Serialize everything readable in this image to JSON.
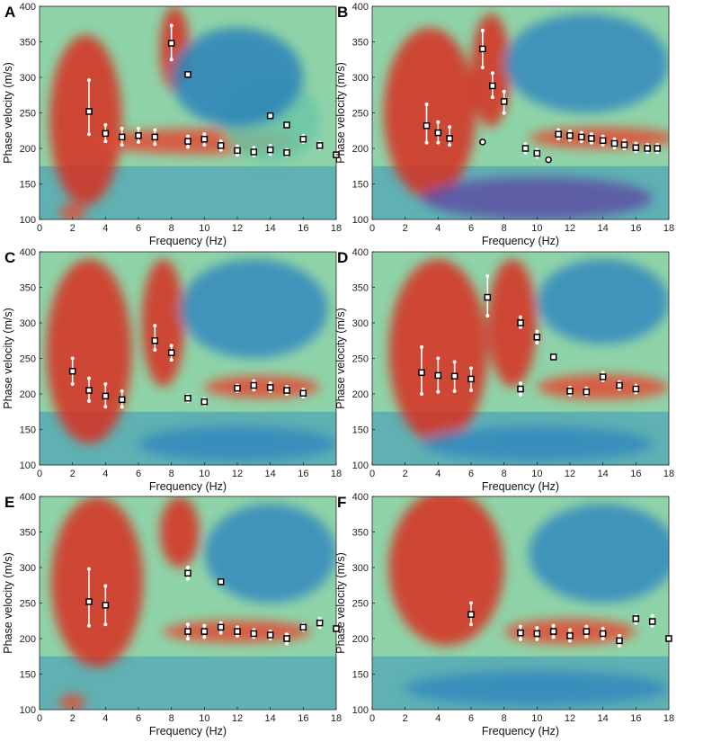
{
  "figure": {
    "xlabel": "Frequency (Hz)",
    "ylabel": "Phase velocity (m/s)",
    "xticks": [
      "0",
      "2",
      "4",
      "6",
      "8",
      "10",
      "12",
      "14",
      "16",
      "18"
    ],
    "yticks": [
      "100",
      "150",
      "200",
      "250",
      "300",
      "350",
      "400"
    ],
    "colors": {
      "marker_fill": "#ffffff",
      "marker_edge": "#000000",
      "errorbar": "#ffffff"
    },
    "colormap": "spectral (red = high energy, blue/purple = low)"
  },
  "chart_data": [
    {
      "panel": "A",
      "type": "scatter",
      "xlabel": "Frequency (Hz)",
      "ylabel": "Phase velocity (m/s)",
      "xlim": [
        0,
        18
      ],
      "ylim": [
        100,
        400
      ],
      "points": [
        {
          "x": 3,
          "y": 252,
          "err": [
            220,
            296
          ],
          "marker": "square"
        },
        {
          "x": 4,
          "y": 221,
          "err": [
            210,
            233
          ],
          "marker": "square"
        },
        {
          "x": 5,
          "y": 216,
          "err": [
            205,
            228
          ],
          "marker": "square"
        },
        {
          "x": 6,
          "y": 218,
          "err": [
            209,
            228
          ],
          "marker": "square"
        },
        {
          "x": 7,
          "y": 216,
          "err": [
            206,
            226
          ],
          "marker": "square"
        },
        {
          "x": 8,
          "y": 348,
          "err": [
            325,
            373
          ],
          "marker": "square"
        },
        {
          "x": 9,
          "y": 304,
          "marker": "square"
        },
        {
          "x": 9,
          "y": 210,
          "err": [
            202,
            217
          ],
          "marker": "square"
        },
        {
          "x": 10,
          "y": 213,
          "err": [
            205,
            220
          ],
          "marker": "square"
        },
        {
          "x": 11,
          "y": 204,
          "err": [
            198,
            210
          ],
          "marker": "square"
        },
        {
          "x": 12,
          "y": 197,
          "err": [
            191,
            203
          ],
          "marker": "square"
        },
        {
          "x": 13,
          "y": 195,
          "err": [
            190,
            201
          ],
          "marker": "square"
        },
        {
          "x": 14,
          "y": 246,
          "marker": "square"
        },
        {
          "x": 14,
          "y": 198,
          "err": [
            192,
            204
          ],
          "marker": "square"
        },
        {
          "x": 15,
          "y": 233,
          "marker": "square"
        },
        {
          "x": 15,
          "y": 194,
          "err": [
            190,
            198
          ],
          "marker": "square"
        },
        {
          "x": 16,
          "y": 213,
          "err": [
            209,
            218
          ],
          "marker": "square"
        },
        {
          "x": 17,
          "y": 204,
          "err": [
            200,
            208
          ],
          "marker": "square"
        },
        {
          "x": 18,
          "y": 191,
          "marker": "square"
        }
      ]
    },
    {
      "panel": "B",
      "type": "scatter",
      "xlabel": "Frequency (Hz)",
      "ylabel": "Phase velocity (m/s)",
      "xlim": [
        0,
        18
      ],
      "ylim": [
        100,
        400
      ],
      "points": [
        {
          "x": 3.3,
          "y": 232,
          "err": [
            208,
            262
          ],
          "marker": "square"
        },
        {
          "x": 4.0,
          "y": 222,
          "err": [
            208,
            237
          ],
          "marker": "square"
        },
        {
          "x": 4.7,
          "y": 214,
          "err": [
            205,
            230
          ],
          "marker": "square"
        },
        {
          "x": 6.7,
          "y": 340,
          "err": [
            314,
            366
          ],
          "marker": "square"
        },
        {
          "x": 6.7,
          "y": 209,
          "marker": "circle"
        },
        {
          "x": 7.3,
          "y": 288,
          "err": [
            272,
            306
          ],
          "marker": "square"
        },
        {
          "x": 8.0,
          "y": 266,
          "err": [
            250,
            280
          ],
          "marker": "square"
        },
        {
          "x": 9.3,
          "y": 200,
          "err": [
            194,
            206
          ],
          "marker": "square"
        },
        {
          "x": 10.0,
          "y": 193,
          "err": [
            188,
            198
          ],
          "marker": "square"
        },
        {
          "x": 10.7,
          "y": 184,
          "marker": "circle"
        },
        {
          "x": 11.3,
          "y": 220,
          "err": [
            214,
            226
          ],
          "marker": "square"
        },
        {
          "x": 12.0,
          "y": 218,
          "err": [
            212,
            224
          ],
          "marker": "square"
        },
        {
          "x": 12.7,
          "y": 216,
          "err": [
            210,
            222
          ],
          "marker": "square"
        },
        {
          "x": 13.3,
          "y": 214,
          "err": [
            208,
            220
          ],
          "marker": "square"
        },
        {
          "x": 14.0,
          "y": 211,
          "err": [
            205,
            217
          ],
          "marker": "square"
        },
        {
          "x": 14.7,
          "y": 207,
          "err": [
            201,
            213
          ],
          "marker": "square"
        },
        {
          "x": 15.3,
          "y": 205,
          "err": [
            200,
            211
          ],
          "marker": "square"
        },
        {
          "x": 16.0,
          "y": 201,
          "err": [
            196,
            207
          ],
          "marker": "square"
        },
        {
          "x": 16.7,
          "y": 200,
          "err": [
            195,
            205
          ],
          "marker": "square"
        },
        {
          "x": 17.3,
          "y": 200,
          "err": [
            195,
            205
          ],
          "marker": "square"
        }
      ]
    },
    {
      "panel": "C",
      "type": "scatter",
      "xlabel": "Frequency (Hz)",
      "ylabel": "Phase velocity (m/s)",
      "xlim": [
        0,
        18
      ],
      "ylim": [
        100,
        400
      ],
      "points": [
        {
          "x": 2,
          "y": 232,
          "err": [
            214,
            250
          ],
          "marker": "square"
        },
        {
          "x": 3,
          "y": 205,
          "err": [
            190,
            222
          ],
          "marker": "square"
        },
        {
          "x": 4,
          "y": 197,
          "err": [
            182,
            214
          ],
          "marker": "square"
        },
        {
          "x": 5,
          "y": 192,
          "err": [
            182,
            204
          ],
          "marker": "square"
        },
        {
          "x": 7,
          "y": 275,
          "err": [
            262,
            296
          ],
          "marker": "square"
        },
        {
          "x": 8,
          "y": 258,
          "err": [
            248,
            268
          ],
          "marker": "square"
        },
        {
          "x": 9,
          "y": 194,
          "err": [
            190,
            198
          ],
          "marker": "square"
        },
        {
          "x": 10,
          "y": 189,
          "err": [
            185,
            193
          ],
          "marker": "square"
        },
        {
          "x": 12,
          "y": 208,
          "err": [
            204,
            212
          ],
          "marker": "square"
        },
        {
          "x": 13,
          "y": 212,
          "err": [
            206,
            218
          ],
          "marker": "square"
        },
        {
          "x": 14,
          "y": 209,
          "err": [
            204,
            215
          ],
          "marker": "square"
        },
        {
          "x": 15,
          "y": 205,
          "err": [
            200,
            210
          ],
          "marker": "square"
        },
        {
          "x": 16,
          "y": 201,
          "err": [
            196,
            206
          ],
          "marker": "square"
        }
      ]
    },
    {
      "panel": "D",
      "type": "scatter",
      "xlabel": "Frequency (Hz)",
      "ylabel": "Phase velocity (m/s)",
      "xlim": [
        0,
        18
      ],
      "ylim": [
        100,
        400
      ],
      "points": [
        {
          "x": 3,
          "y": 230,
          "err": [
            200,
            266
          ],
          "marker": "square"
        },
        {
          "x": 4,
          "y": 226,
          "err": [
            203,
            250
          ],
          "marker": "square"
        },
        {
          "x": 5,
          "y": 225,
          "err": [
            204,
            245
          ],
          "marker": "square"
        },
        {
          "x": 6,
          "y": 221,
          "err": [
            205,
            236
          ],
          "marker": "square"
        },
        {
          "x": 7,
          "y": 336,
          "err": [
            310,
            366
          ],
          "marker": "square"
        },
        {
          "x": 9,
          "y": 300,
          "err": [
            294,
            308
          ],
          "marker": "square"
        },
        {
          "x": 9,
          "y": 207,
          "err": [
            199,
            215
          ],
          "marker": "square"
        },
        {
          "x": 10,
          "y": 280,
          "err": [
            272,
            288
          ],
          "marker": "square"
        },
        {
          "x": 11,
          "y": 252,
          "marker": "square"
        },
        {
          "x": 12,
          "y": 204,
          "err": [
            199,
            209
          ],
          "marker": "square"
        },
        {
          "x": 13,
          "y": 203,
          "err": [
            199,
            208
          ],
          "marker": "square"
        },
        {
          "x": 14,
          "y": 224,
          "err": [
            219,
            230
          ],
          "marker": "square"
        },
        {
          "x": 15,
          "y": 212,
          "err": [
            207,
            217
          ],
          "marker": "square"
        },
        {
          "x": 16,
          "y": 207,
          "err": [
            202,
            212
          ],
          "marker": "square"
        }
      ]
    },
    {
      "panel": "E",
      "type": "scatter",
      "xlabel": "Frequency (Hz)",
      "ylabel": "Phase velocity (m/s)",
      "xlim": [
        0,
        18
      ],
      "ylim": [
        100,
        400
      ],
      "points": [
        {
          "x": 3,
          "y": 252,
          "err": [
            218,
            298
          ],
          "marker": "square"
        },
        {
          "x": 4,
          "y": 247,
          "err": [
            220,
            274
          ],
          "marker": "square"
        },
        {
          "x": 9,
          "y": 292,
          "err": [
            284,
            300
          ],
          "marker": "square"
        },
        {
          "x": 9,
          "y": 210,
          "err": [
            200,
            220
          ],
          "marker": "square"
        },
        {
          "x": 10,
          "y": 210,
          "err": [
            202,
            218
          ],
          "marker": "square"
        },
        {
          "x": 11,
          "y": 280,
          "marker": "square"
        },
        {
          "x": 11,
          "y": 216,
          "err": [
            208,
            222
          ],
          "marker": "square"
        },
        {
          "x": 12,
          "y": 210,
          "err": [
            204,
            216
          ],
          "marker": "square"
        },
        {
          "x": 13,
          "y": 207,
          "err": [
            202,
            212
          ],
          "marker": "square"
        },
        {
          "x": 14,
          "y": 205,
          "err": [
            200,
            210
          ],
          "marker": "square"
        },
        {
          "x": 15,
          "y": 200,
          "err": [
            193,
            206
          ],
          "marker": "square"
        },
        {
          "x": 16,
          "y": 216,
          "err": [
            212,
            220
          ],
          "marker": "square"
        },
        {
          "x": 17,
          "y": 222,
          "err": [
            216,
            228
          ],
          "marker": "square"
        },
        {
          "x": 18,
          "y": 214,
          "marker": "square"
        }
      ]
    },
    {
      "panel": "F",
      "type": "scatter",
      "xlabel": "Frequency (Hz)",
      "ylabel": "Phase velocity (m/s)",
      "xlim": [
        0,
        18
      ],
      "ylim": [
        100,
        400
      ],
      "points": [
        {
          "x": 6,
          "y": 234,
          "err": [
            220,
            250
          ],
          "marker": "square"
        },
        {
          "x": 9,
          "y": 208,
          "err": [
            199,
            217
          ],
          "marker": "square"
        },
        {
          "x": 10,
          "y": 207,
          "err": [
            199,
            215
          ],
          "marker": "square"
        },
        {
          "x": 11,
          "y": 210,
          "err": [
            202,
            218
          ],
          "marker": "square"
        },
        {
          "x": 12,
          "y": 204,
          "err": [
            197,
            212
          ],
          "marker": "square"
        },
        {
          "x": 13,
          "y": 210,
          "err": [
            203,
            217
          ],
          "marker": "square"
        },
        {
          "x": 14,
          "y": 207,
          "err": [
            200,
            214
          ],
          "marker": "square"
        },
        {
          "x": 15,
          "y": 197,
          "err": [
            190,
            204
          ],
          "marker": "square"
        },
        {
          "x": 16,
          "y": 228,
          "err": [
            222,
            232
          ],
          "marker": "square"
        },
        {
          "x": 17,
          "y": 224,
          "err": [
            218,
            232
          ],
          "marker": "square"
        },
        {
          "x": 18,
          "y": 200,
          "marker": "square"
        }
      ]
    }
  ]
}
